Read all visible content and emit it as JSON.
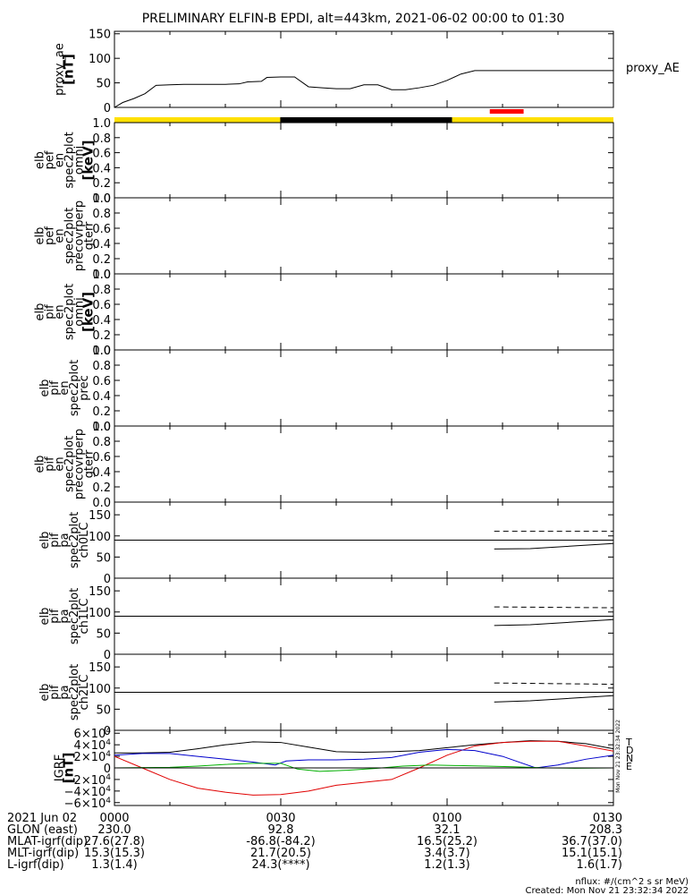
{
  "title": "PRELIMINARY ELFIN-B EPDI, alt=443km, 2021-06-02 00:00 to 01:30",
  "colors": {
    "sunlit": "#ffe000",
    "shadow": "#000000",
    "science": "#ff0000",
    "igrf_T": "#000000",
    "igrf_D": "#e00000",
    "igrf_N": "#0000cc",
    "igrf_E": "#00b000"
  },
  "time_range_min": [
    0,
    90
  ],
  "sunlight_bar": [
    {
      "state": "sunlit",
      "start": 0,
      "end": 29.9
    },
    {
      "state": "shadow",
      "start": 29.9,
      "end": 60.9
    },
    {
      "state": "sunlit",
      "start": 60.9,
      "end": 90
    }
  ],
  "science_bar": {
    "start": 67.7,
    "end": 73.8
  },
  "chart_data": [
    {
      "type": "line",
      "panel": "proxy_ae",
      "ylabel_lines": [
        "proxy_ae",
        "[nT]"
      ],
      "legend": "proxy_AE",
      "ylim": [
        0,
        155
      ],
      "yticks": [
        "0",
        "50",
        "100",
        "150"
      ],
      "x": [
        0,
        1.5,
        3.5,
        5.5,
        7.5,
        10,
        12.5,
        15,
        17.5,
        20,
        22.5,
        24,
        26.5,
        27.5,
        30,
        32.5,
        35,
        37.5,
        40,
        42.5,
        45,
        47.5,
        50,
        52.5,
        55,
        57.5,
        60,
        62.5,
        65,
        67.5,
        70,
        72.5,
        75,
        77.5,
        80,
        82.5,
        85,
        87.5,
        90
      ],
      "y": [
        0,
        10,
        18,
        28,
        45,
        46,
        47,
        47,
        47,
        47,
        48,
        52,
        53,
        61,
        62,
        62,
        42,
        40,
        38,
        38,
        46,
        46,
        36,
        36,
        40,
        45,
        55,
        68,
        75,
        75,
        75,
        75,
        75,
        75,
        75,
        75,
        75,
        75,
        75
      ]
    },
    {
      "type": "line",
      "panel": "elb_pef_en_spec2plot_omni",
      "ylabel_lines": [
        "elb",
        "pef",
        "en",
        "spec2plot",
        "omni",
        "[keV]"
      ],
      "ylim": [
        0,
        1
      ],
      "yticks": [
        "0.0",
        "0.2",
        "0.4",
        "0.6",
        "0.8",
        "1.0"
      ]
    },
    {
      "type": "line",
      "panel": "elb_pef_en_spec2plot_precovrperp_gterr",
      "ylabel_lines": [
        "elb",
        "pef",
        "en",
        "spec2plot",
        "precovrperp",
        "gterr"
      ],
      "ylim": [
        0,
        1
      ],
      "yticks": [
        "0.0",
        "0.2",
        "0.4",
        "0.6",
        "0.8",
        "1.0"
      ]
    },
    {
      "type": "line",
      "panel": "elb_pif_en_spec2plot_omni",
      "ylabel_lines": [
        "elb",
        "pif",
        "en",
        "spec2plot",
        "omni",
        "[keV]"
      ],
      "ylim": [
        0,
        1
      ],
      "yticks": [
        "0.0",
        "0.2",
        "0.4",
        "0.6",
        "0.8",
        "1.0"
      ]
    },
    {
      "type": "line",
      "panel": "elb_pif_en_spec2plot_prec",
      "ylabel_lines": [
        "elb",
        "pif",
        "en",
        "spec2plot",
        "prec"
      ],
      "ylim": [
        0,
        1
      ],
      "yticks": [
        "0.0",
        "0.2",
        "0.4",
        "0.6",
        "0.8",
        "1.0"
      ]
    },
    {
      "type": "line",
      "panel": "elb_pif_en_spec2plot_precovrperp_gterr",
      "ylabel_lines": [
        "elb",
        "pif",
        "en",
        "spec2plot",
        "precovrperp",
        "gterr"
      ],
      "ylim": [
        0,
        1
      ],
      "yticks": [
        "0.0",
        "0.2",
        "0.4",
        "0.6",
        "0.8",
        "1.0"
      ]
    },
    {
      "type": "line",
      "panel": "elb_pif_pa_spec2plot_ch0LC",
      "ylabel_lines": [
        "elb",
        "pif",
        "pa",
        "spec2plot",
        "ch0LC"
      ],
      "ylim": [
        0,
        180
      ],
      "yticks": [
        "0",
        "50",
        "100",
        "150"
      ],
      "reference_line": 90,
      "series": [
        {
          "style": "dashed",
          "x": [
            68.5,
            90
          ],
          "y": [
            111,
            111
          ]
        },
        {
          "style": "solid",
          "x": [
            68.5,
            75,
            90
          ],
          "y": [
            69,
            70,
            82
          ]
        }
      ]
    },
    {
      "type": "line",
      "panel": "elb_pif_pa_spec2plot_ch1LC",
      "ylabel_lines": [
        "elb",
        "pif",
        "pa",
        "spec2plot",
        "ch1LC"
      ],
      "ylim": [
        0,
        180
      ],
      "yticks": [
        "0",
        "50",
        "100",
        "150"
      ],
      "reference_line": 90,
      "series": [
        {
          "style": "dashed",
          "x": [
            68.5,
            90
          ],
          "y": [
            112,
            110
          ]
        },
        {
          "style": "solid",
          "x": [
            68.5,
            75,
            90
          ],
          "y": [
            68,
            70,
            82
          ]
        }
      ]
    },
    {
      "type": "line",
      "panel": "elb_pif_pa_spec2plot_ch2LC",
      "ylabel_lines": [
        "elb",
        "pif",
        "pa",
        "spec2plot",
        "ch2LC"
      ],
      "ylim": [
        0,
        180
      ],
      "yticks": [
        "0",
        "50",
        "100",
        "150"
      ],
      "reference_line": 90,
      "series": [
        {
          "style": "dashed",
          "x": [
            68.5,
            90
          ],
          "y": [
            112,
            109
          ]
        },
        {
          "style": "solid",
          "x": [
            68.5,
            75,
            90
          ],
          "y": [
            67,
            70,
            82
          ]
        }
      ]
    },
    {
      "type": "line",
      "panel": "igrf",
      "ylabel_lines": [
        "IGRF",
        "[nT]"
      ],
      "ylim": [
        -65000,
        65000
      ],
      "yticks": [
        {
          "value": 60000,
          "mant": "6",
          "exp": "4"
        },
        {
          "value": 40000,
          "mant": "4",
          "exp": "4"
        },
        {
          "value": 20000,
          "mant": "2",
          "exp": "4"
        },
        {
          "value": 0,
          "mant": "0",
          "exp": ""
        },
        {
          "value": -20000,
          "mant": "−2",
          "exp": "4"
        },
        {
          "value": -40000,
          "mant": "−4",
          "exp": "4"
        },
        {
          "value": -60000,
          "mant": "−6",
          "exp": "4"
        }
      ],
      "series": [
        {
          "name": "T",
          "color": "#000000",
          "x": [
            0,
            5,
            10,
            15,
            20,
            25,
            30,
            35,
            40,
            45,
            50,
            55,
            60,
            65,
            70,
            75,
            80,
            85,
            90
          ],
          "y": [
            26000,
            26000,
            27000,
            33000,
            40000,
            45000,
            44000,
            36000,
            28000,
            27000,
            28000,
            30000,
            35000,
            40000,
            44000,
            47000,
            46000,
            42000,
            33000
          ]
        },
        {
          "name": "D",
          "color": "#e00000",
          "x": [
            0,
            5,
            10,
            15,
            20,
            25,
            30,
            35,
            40,
            45,
            50,
            55,
            60,
            65,
            70,
            75,
            80,
            85,
            90
          ],
          "y": [
            20000,
            0,
            -20000,
            -35000,
            -42000,
            -47000,
            -46000,
            -40000,
            -30000,
            -25000,
            -20000,
            0,
            22000,
            38000,
            44000,
            46000,
            46000,
            38000,
            29000
          ]
        },
        {
          "name": "N",
          "color": "#0000cc",
          "x": [
            0,
            5,
            10,
            15,
            20,
            25,
            29,
            31,
            35,
            40,
            45,
            50,
            55,
            60,
            65,
            70,
            73,
            76,
            80,
            85,
            90
          ],
          "y": [
            22000,
            25000,
            25000,
            20000,
            15000,
            10000,
            5000,
            12000,
            14000,
            14000,
            15000,
            18000,
            27000,
            32000,
            30000,
            20000,
            10000,
            0,
            5000,
            15000,
            22000
          ]
        },
        {
          "name": "E",
          "color": "#00b000",
          "x": [
            0,
            5,
            10,
            15,
            20,
            25,
            30,
            33,
            37,
            42,
            47,
            52,
            57,
            62,
            67,
            72,
            75,
            78,
            83,
            90
          ],
          "y": [
            0,
            500,
            1000,
            3000,
            6000,
            8000,
            8000,
            -2000,
            -6000,
            -4000,
            -1000,
            3000,
            5000,
            4000,
            3000,
            2000,
            1000,
            0,
            -500,
            0
          ]
        }
      ]
    }
  ],
  "igrf_legend": [
    "T",
    "D",
    "N",
    "E"
  ],
  "footer": {
    "row_labels": [
      "2021 Jun 02",
      "GLON (east)",
      "MLAT-igrf(dip)",
      "MLT-igrf(dip)",
      "L-igrf(dip)"
    ],
    "columns": [
      {
        "t": 0,
        "values": [
          "0000",
          "230.0",
          "27.6(27.8)",
          "15.3(15.3)",
          "1.3(1.4)"
        ]
      },
      {
        "t": 30,
        "values": [
          "0030",
          "92.8",
          "-86.8(-84.2)",
          "21.7(20.5)",
          "24.3(****)"
        ]
      },
      {
        "t": 60,
        "values": [
          "0100",
          "32.1",
          "16.5(25.2)",
          "3.4(3.7)",
          "1.2(1.3)"
        ]
      },
      {
        "t": 90,
        "values": [
          "0130",
          "208.3",
          "36.7(37.0)",
          "15.1(15.1)",
          "1.6(1.7)"
        ]
      }
    ],
    "units_note": "nflux: #/(cm^2 s sr MeV)",
    "created": "Created: Mon Nov 21 23:32:34 2022",
    "side_stamp": "Mon Nov 21 23:32:34 2022"
  }
}
